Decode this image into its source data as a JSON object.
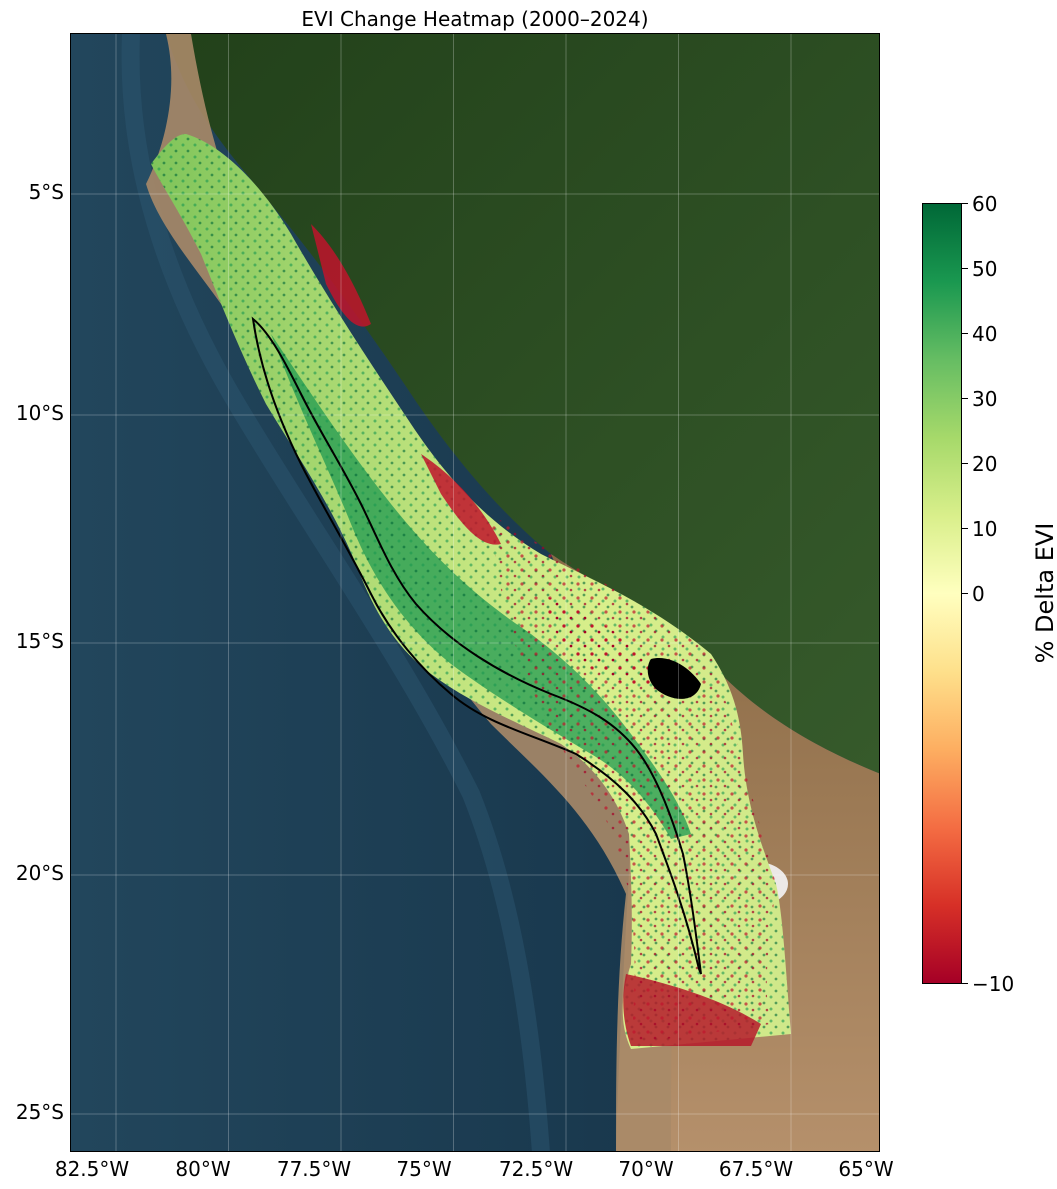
{
  "title": "EVI Change Heatmap (2000–2024)",
  "map": {
    "extent": {
      "lon": [
        -82.5,
        -64.5
      ],
      "lat": [
        -1.5,
        -26.0
      ]
    },
    "y_ticks": [
      "5°S",
      "10°S",
      "15°S",
      "20°S",
      "25°S"
    ],
    "x_ticks": [
      "82.5°W",
      "80°W",
      "77.5°W",
      "75°W",
      "72.5°W",
      "70°W",
      "67.5°W",
      "65°W"
    ],
    "layers": [
      "ocean",
      "amazon-forest",
      "andes-highlands",
      "atacama-desert",
      "evi-change-raster",
      "study-region-outline",
      "lake-titicaca"
    ],
    "colors": {
      "ocean": "#1d3d52",
      "forest": "#2c4a22",
      "highland": "#8a6a45",
      "desert": "#b08a66",
      "outline": "#000000"
    }
  },
  "colorbar": {
    "label": "% Delta EVI",
    "ticks": [
      "60",
      "50",
      "40",
      "30",
      "20",
      "10",
      "0",
      "−10"
    ],
    "range": [
      -10,
      60
    ],
    "colormap": "RdYlGn",
    "stops": [
      "#006837",
      "#1a9850",
      "#66bd63",
      "#a6d96a",
      "#d9ef8b",
      "#ffffbf",
      "#fee08b",
      "#fdae61",
      "#f46d43",
      "#d73027",
      "#a50026"
    ]
  }
}
